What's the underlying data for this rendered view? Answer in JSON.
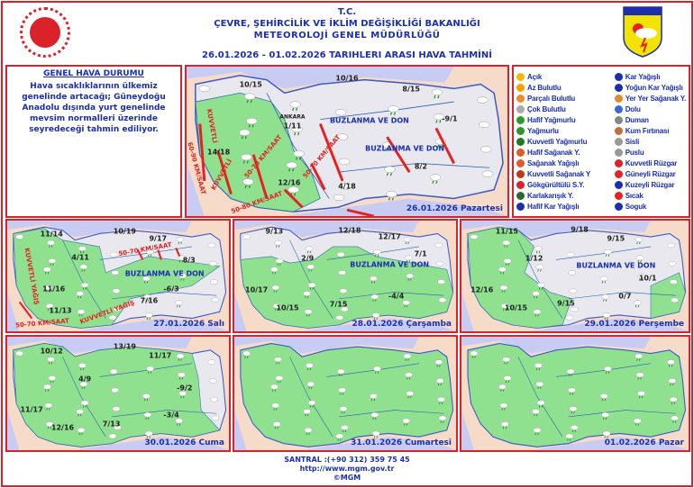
{
  "header": {
    "line1": "T.C.",
    "line2": "ÇEVRE, ŞEHİRCİLİK VE İKLİM DEĞİŞİKLİĞİ BAKANLIĞI",
    "line3": "METEOROLOJİ  GENEL  MÜDÜRLÜĞÜ",
    "line4": "26.01.2026  -  01.02.2026   TARIHLERI  ARASI  HAVA  TAHMİNİ",
    "logo_text": "METEOROLOJİ"
  },
  "general": {
    "title": "GENEL HAVA DURUMU",
    "body": "Hava sıcaklıklarının ülkemiz genelinde artacağı; Güneydoğu Anadolu dışında yurt genelinde mevsim normalleri üzerinde seyredeceği tahmin ediliyor."
  },
  "legend": [
    {
      "icon": "sun-icon",
      "label": "Açık",
      "color": "#f5b800"
    },
    {
      "icon": "sun-cloud-icon",
      "label": "Az Bulutlu",
      "color": "#f5a000"
    },
    {
      "icon": "partly-cloudy-icon",
      "label": "Parçalı Bulutlu",
      "color": "#f08a30"
    },
    {
      "icon": "cloud-icon",
      "label": "Çok Bulutlu",
      "color": "#aaaaaa"
    },
    {
      "icon": "light-rain-icon",
      "label": "Hafif Yağmurlu",
      "color": "#2a9a2a"
    },
    {
      "icon": "rain-icon",
      "label": "Yağmurlu",
      "color": "#2a9a2a"
    },
    {
      "icon": "heavy-rain-icon",
      "label": "Kuvvetli Yağmurlu",
      "color": "#1d7a1d"
    },
    {
      "icon": "light-shower-icon",
      "label": "Hafif Sağanak Y.",
      "color": "#e05a2a"
    },
    {
      "icon": "shower-icon",
      "label": "Sağanak Yağışlı",
      "color": "#e05a2a"
    },
    {
      "icon": "heavy-shower-icon",
      "label": "Kuvvetli Sağanak Y",
      "color": "#c03a1a"
    },
    {
      "icon": "thunderstorm-icon",
      "label": "Gökgürültülü S.Y.",
      "color": "#d9222a"
    },
    {
      "icon": "sleet-icon",
      "label": "Karlakarışık Y.",
      "color": "#2a6a2a"
    },
    {
      "icon": "light-snow-icon",
      "label": "Hafif Kar Yağışlı",
      "color": "#1b2fb0"
    },
    {
      "icon": "snow-icon",
      "label": "Kar Yağışlı",
      "color": "#1b2fb0"
    },
    {
      "icon": "heavy-snow-icon",
      "label": "Yoğun Kar Yağışlı",
      "color": "#1b2fb0"
    },
    {
      "icon": "scattered-shower-icon",
      "label": "Yer Yer Sağanak Y.",
      "color": "#e08a30"
    },
    {
      "icon": "hail-icon",
      "label": "Dolu",
      "color": "#3a6ad0"
    },
    {
      "icon": "smoke-icon",
      "label": "Duman",
      "color": "#888888"
    },
    {
      "icon": "sandstorm-icon",
      "label": "Kum Fırtınası",
      "color": "#c07040"
    },
    {
      "icon": "fog-icon",
      "label": "Sisli",
      "color": "#999999"
    },
    {
      "icon": "haze-icon",
      "label": "Puslu",
      "color": "#999999"
    },
    {
      "icon": "strong-wind-icon",
      "label": "Kuvvetli Rüzgar",
      "color": "#d9222a"
    },
    {
      "icon": "south-wind-icon",
      "label": "Güneyli Rüzgar",
      "color": "#e52222"
    },
    {
      "icon": "north-wind-icon",
      "label": "Kuzeyli Rüzgar",
      "color": "#1b2fb0"
    },
    {
      "icon": "hot-icon",
      "label": "Sıcak",
      "color": "#e52222"
    },
    {
      "icon": "cold-icon",
      "label": "Soguk",
      "color": "#1b2fb0"
    }
  ],
  "maps": [
    {
      "date": "26.01.2026 Pazartesi",
      "labels": [
        "10/15",
        "10/16",
        "8/15",
        "-9/1",
        "ANKARA",
        "1/11",
        "14/18",
        "8/2",
        "12/16",
        "4/18",
        "BUZLANMA VE DON",
        "BUZLANMA VE DON",
        "KUVVETLİ",
        "60-90 KM/SAAT",
        "50-70 KM/SAAT",
        "50-70 KM/SAAT",
        "KUVVETLİ",
        "50-80 KM/SAAT"
      ]
    },
    {
      "date": "27.01.2026 Salı",
      "labels": [
        "11/14",
        "10/19",
        "9/17",
        "4/11",
        "8/3",
        "BUZLANMA VE DON",
        "11/16",
        "-6/3",
        "11/13",
        "7/16",
        "50-70 KM/SAAT",
        "KUVVETLİ YAĞIŞ",
        "50-70 KM/SAAT",
        "KUVVETLİ YAĞIŞ"
      ]
    },
    {
      "date": "28.01.2026 Çarşamba",
      "labels": [
        "9/13",
        "12/18",
        "12/17",
        "2/9",
        "7/1",
        "BUZLANMA VE DON",
        "10/17",
        "-4/4",
        "10/15",
        "7/15"
      ]
    },
    {
      "date": "29.01.2026 Perşembe",
      "labels": [
        "11/15",
        "9/18",
        "9/15",
        "1/12",
        "BUZLANMA VE DON",
        "10/1",
        "12/16",
        "0/7",
        "10/15",
        "9/15"
      ]
    },
    {
      "date": "30.01.2026 Cuma",
      "labels": [
        "10/12",
        "13/19",
        "11/17",
        "4/9",
        "-9/2",
        "11/17",
        "-3/4",
        "12/16",
        "7/13"
      ]
    },
    {
      "date": "31.01.2026 Cumartesi",
      "labels": []
    },
    {
      "date": "01.02.2026 Pazar",
      "labels": []
    }
  ],
  "colors": {
    "accent": "#d9222a",
    "text": "#1b2fb0",
    "sea": "#c9ccf2",
    "land": "#e8e8ee",
    "rain_area": "#8fe08f",
    "wind": "#e52222"
  },
  "footer": {
    "phone": "SANTRAL :(+90 312) 359 75 45",
    "url": "http://www.mgm.gov.tr",
    "copyright": "©MGM"
  }
}
